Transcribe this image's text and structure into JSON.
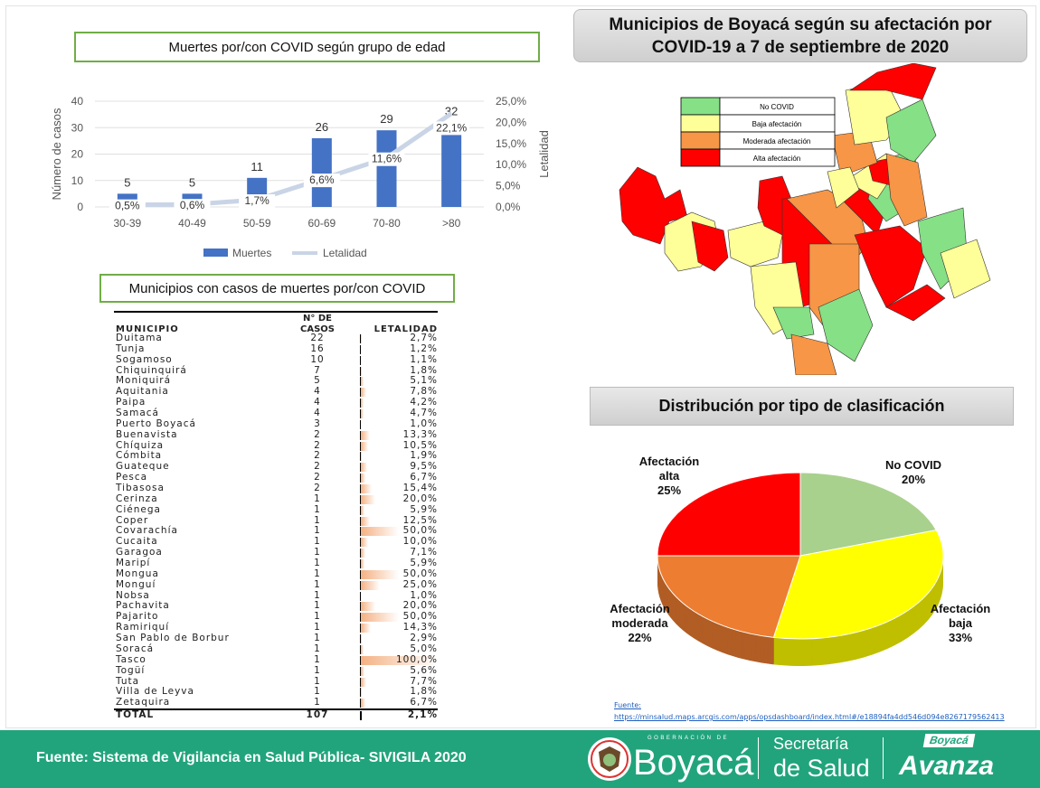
{
  "chart_data": [
    {
      "type": "bar+line",
      "title": "Muertes por/con COVID según grupo de edad",
      "categories": [
        "30-39",
        "40-49",
        "50-59",
        "60-69",
        "70-80",
        ">80"
      ],
      "series": [
        {
          "name": "Muertes",
          "type": "bar",
          "axis": "left",
          "values": [
            5,
            5,
            11,
            26,
            29,
            32
          ],
          "color": "#4472c4"
        },
        {
          "name": "Letalidad",
          "type": "line",
          "axis": "right",
          "values": [
            0.5,
            0.6,
            1.7,
            6.6,
            11.6,
            22.1
          ],
          "labels": [
            "0,5%",
            "0,6%",
            "1,7%",
            "6,6%",
            "11,6%",
            "22,1%"
          ],
          "color": "#c9d5e6"
        }
      ],
      "ylabel": "Número de casos",
      "ylim": [
        0,
        40
      ],
      "yticks": [
        "0",
        "10",
        "20",
        "30",
        "40"
      ],
      "y2label": "Letalidad",
      "y2lim": [
        0,
        25
      ],
      "y2ticks": [
        "0,0%",
        "5,0%",
        "10,0%",
        "15,0%",
        "20,0%",
        "25,0%"
      ],
      "grid": true,
      "legend": "bottom"
    },
    {
      "type": "pie",
      "title": "Distribución por tipo de clasificación",
      "slices": [
        {
          "label": "No COVID",
          "value": 20,
          "text": "20%",
          "color": "#a9d18e"
        },
        {
          "label": "Afectación baja",
          "value": 33,
          "text": "33%",
          "color": "#ffff00"
        },
        {
          "label": "Afectación moderada",
          "value": 22,
          "text": "22%",
          "color": "#ed7d31"
        },
        {
          "label": "Afectación alta",
          "value": 25,
          "text": "25%",
          "color": "#ff0000"
        }
      ]
    }
  ],
  "map": {
    "title": "Municipios de Boyacá según su afectación por COVID-19 a 7 de septiembre de 2020",
    "legend": [
      {
        "label": "No COVID",
        "color": "#86e086"
      },
      {
        "label": "Baja afectación",
        "color": "#ffff99"
      },
      {
        "label": "Moderada afectación",
        "color": "#f79646"
      },
      {
        "label": "Alta afectación",
        "color": "#ff0000"
      }
    ],
    "source_label": "Fuente:",
    "source_url": "https://minsalud.maps.arcgis.com/apps/opsdashboard/index.html#/e18894fa4dd546d094e8267179562413"
  },
  "table": {
    "title": "Municipios con casos de muertes por/con COVID",
    "headers": [
      "MUNICIPIO",
      "N° DE",
      "CASOS",
      "LETALIDAD"
    ],
    "rows": [
      [
        "Duitama",
        "22",
        "2,7%",
        2.7
      ],
      [
        "Tunja",
        "16",
        "1,2%",
        1.2
      ],
      [
        "Sogamoso",
        "10",
        "1,1%",
        1.1
      ],
      [
        "Chiquinquirá",
        "7",
        "1,8%",
        1.8
      ],
      [
        "Moniquirá",
        "5",
        "5,1%",
        5.1
      ],
      [
        "Aquitania",
        "4",
        "7,8%",
        7.8
      ],
      [
        "Paipa",
        "4",
        "4,2%",
        4.2
      ],
      [
        "Samacá",
        "4",
        "4,7%",
        4.7
      ],
      [
        "Puerto Boyacá",
        "3",
        "1,0%",
        1.0
      ],
      [
        "Buenavista",
        "2",
        "13,3%",
        13.3
      ],
      [
        "Chíquiza",
        "2",
        "10,5%",
        10.5
      ],
      [
        "Cómbita",
        "2",
        "1,9%",
        1.9
      ],
      [
        "Guateque",
        "2",
        "9,5%",
        9.5
      ],
      [
        "Pesca",
        "2",
        "6,7%",
        6.7
      ],
      [
        "Tibasosa",
        "2",
        "15,4%",
        15.4
      ],
      [
        "Cerinza",
        "1",
        "20,0%",
        20.0
      ],
      [
        "Ciénega",
        "1",
        "5,9%",
        5.9
      ],
      [
        "Coper",
        "1",
        "12,5%",
        12.5
      ],
      [
        "Covarachía",
        "1",
        "50,0%",
        50.0
      ],
      [
        "Cucaita",
        "1",
        "10,0%",
        10.0
      ],
      [
        "Garagoa",
        "1",
        "7,1%",
        7.1
      ],
      [
        "Maripí",
        "1",
        "5,9%",
        5.9
      ],
      [
        "Mongua",
        "1",
        "50,0%",
        50.0
      ],
      [
        "Monguí",
        "1",
        "25,0%",
        25.0
      ],
      [
        "Nobsa",
        "1",
        "1,0%",
        1.0
      ],
      [
        "Pachavita",
        "1",
        "20,0%",
        20.0
      ],
      [
        "Pajarito",
        "1",
        "50,0%",
        50.0
      ],
      [
        "Ramiriquí",
        "1",
        "14,3%",
        14.3
      ],
      [
        "San Pablo de Borbur",
        "1",
        "2,9%",
        2.9
      ],
      [
        "Soracá",
        "1",
        "5,0%",
        5.0
      ],
      [
        "Tasco",
        "1",
        "100,0%",
        100.0
      ],
      [
        "Togüí",
        "1",
        "5,6%",
        5.6
      ],
      [
        "Tuta",
        "1",
        "7,7%",
        7.7
      ],
      [
        "Villa de Leyva",
        "1",
        "1,8%",
        1.8
      ],
      [
        "Zetaquira",
        "1",
        "6,7%",
        6.7
      ]
    ],
    "total": [
      "TOTAL",
      "107",
      "2,1%"
    ]
  },
  "footer": {
    "source": "Fuente: Sistema de Vigilancia en Salud Pública- SIVIGILA 2020",
    "gob_small": "GOBERNACIÓN DE",
    "gob_big": "Boyacá",
    "sec1": "Secretaría",
    "sec2": "de Salud",
    "avanza_small": "Boyacá",
    "avanza_big": "Avanza"
  }
}
